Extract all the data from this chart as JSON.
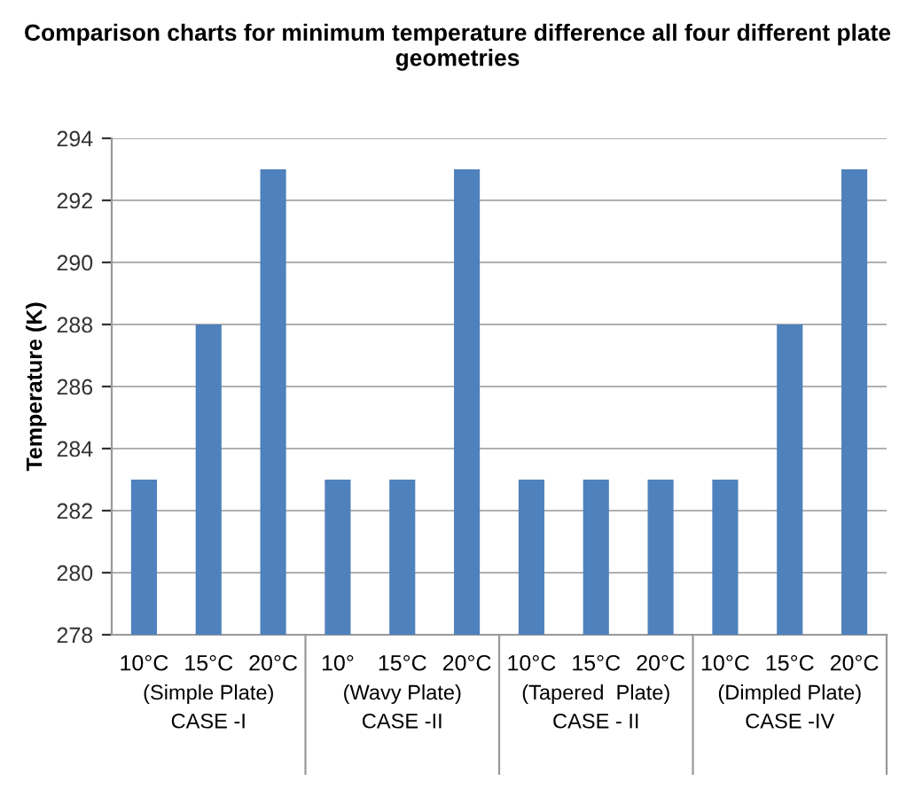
{
  "chart_data": {
    "type": "bar",
    "title": "Comparison charts for minimum temperature difference all four different plate geometries",
    "ylabel": "Temperature (K)",
    "categories": [
      "10°C",
      "15°C",
      "20°C",
      "10°",
      "15°C",
      "20°C",
      "10°C",
      "15°C",
      "20°C",
      "10°C",
      "15°C",
      "20°C"
    ],
    "values": [
      283,
      288,
      293,
      283,
      283,
      293,
      283,
      283,
      283,
      283,
      288,
      293
    ],
    "color": "#4f81bd",
    "annotations": [
      "(Simple Plate)\nCASE -I",
      "(Wavy Plate)\nCASE -II",
      "(Tapered  Plate)\nCASE - II",
      "(Dimpled Plate)\nCASE -IV"
    ],
    "ylim": [
      278,
      294
    ],
    "yticks": [
      278,
      280,
      282,
      284,
      286,
      288,
      290,
      292,
      294
    ],
    "grid": "y"
  }
}
